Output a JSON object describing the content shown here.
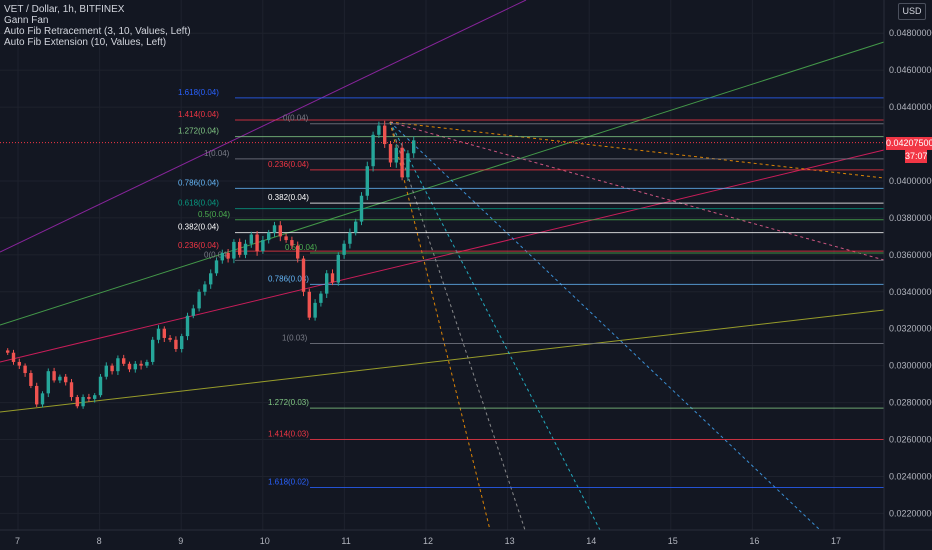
{
  "header": {
    "symbol": "VET / Dollar, 1h, BITFINEX",
    "indicators": [
      "Gann Fan",
      "Auto Fib Retracement (3, 10, Values, Left)",
      "Auto Fib Extension (10, Values, Left)"
    ],
    "currency_button": "USD"
  },
  "price_axis": {
    "ticks": [
      "0.04800000",
      "0.04600000",
      "0.04400000",
      "0.04000000",
      "0.03800000",
      "0.03600000",
      "0.03400000",
      "0.03200000",
      "0.03000000",
      "0.02800000",
      "0.02600000",
      "0.02400000",
      "0.02200000"
    ],
    "current_price": "0.04207500",
    "countdown": "37:07",
    "current_price_color": "#f23645",
    "countdown_color": "#f23645"
  },
  "time_axis": {
    "ticks": [
      "7",
      "8",
      "9",
      "10",
      "11",
      "12",
      "13",
      "14",
      "15",
      "16",
      "17"
    ]
  },
  "fib_levels": [
    {
      "label": "1.618(0.04)",
      "color": "#2962ff"
    },
    {
      "label": "1.414(0.04)",
      "color": "#f23645"
    },
    {
      "label": "0(0.04)",
      "color": "#787b86"
    },
    {
      "label": "1.272(0.04)",
      "color": "#81c784"
    },
    {
      "label": "1(0.04)",
      "color": "#787b86"
    },
    {
      "label": "0.236(0.04)",
      "color": "#f23645"
    },
    {
      "label": "0.786(0.04)",
      "color": "#64b5f6"
    },
    {
      "label": "0.382(0.04)",
      "color": "#ffffff"
    },
    {
      "label": "0.618(0.04)",
      "color": "#089981"
    },
    {
      "label": "0.5(0.04)",
      "color": "#4caf50"
    },
    {
      "label": "0.382(0.04)",
      "color": "#ffffff"
    },
    {
      "label": "0.236(0.04)",
      "color": "#f23645"
    },
    {
      "label": "0.5(0.04)",
      "color": "#4caf50"
    },
    {
      "label": "0(0.04)",
      "color": "#787b86"
    },
    {
      "label": "0.786(0.03)",
      "color": "#64b5f6"
    },
    {
      "label": "1(0.03)",
      "color": "#787b86"
    },
    {
      "label": "1.272(0.03)",
      "color": "#81c784"
    },
    {
      "label": "1.414(0.03)",
      "color": "#f23645"
    },
    {
      "label": "1.618(0.02)",
      "color": "#2962ff"
    }
  ],
  "chart_data": {
    "type": "candlestick",
    "symbol": "VET / Dollar",
    "interval": "1h",
    "exchange": "BITFINEX",
    "y_range": [
      0.0211,
      0.0498
    ],
    "x_ticks": [
      "7",
      "8",
      "9",
      "10",
      "11",
      "12",
      "13",
      "14",
      "15",
      "16",
      "17"
    ],
    "y_ticks": [
      0.048,
      0.046,
      0.044,
      0.04,
      0.038,
      0.036,
      0.034,
      0.032,
      0.03,
      0.028,
      0.026,
      0.024,
      0.022
    ],
    "current_price": 0.042075,
    "colors": {
      "up": "#26a69a",
      "down": "#ef5350"
    },
    "close_series": [
      0.0307,
      0.0302,
      0.03,
      0.0296,
      0.0289,
      0.0279,
      0.0285,
      0.0297,
      0.0292,
      0.0294,
      0.0291,
      0.0283,
      0.0278,
      0.0283,
      0.0282,
      0.0284,
      0.0294,
      0.03,
      0.0297,
      0.0304,
      0.0301,
      0.0298,
      0.0301,
      0.03,
      0.0302,
      0.0314,
      0.032,
      0.0315,
      0.0314,
      0.0309,
      0.0316,
      0.0327,
      0.0331,
      0.034,
      0.0344,
      0.035,
      0.0357,
      0.0361,
      0.0358,
      0.0367,
      0.036,
      0.0366,
      0.0371,
      0.0362,
      0.0368,
      0.0372,
      0.0376,
      0.037,
      0.0368,
      0.0365,
      0.0358,
      0.034,
      0.0326,
      0.0334,
      0.0339,
      0.035,
      0.0345,
      0.036,
      0.0366,
      0.0372,
      0.0378,
      0.0392,
      0.0408,
      0.0425,
      0.043,
      0.042,
      0.041,
      0.0418,
      0.0402,
      0.0415,
      0.0422
    ],
    "fib_retracement": {
      "0": 0.043,
      "0.236": 0.0406,
      "0.382": 0.0388,
      "0.5": 0.0376,
      "0.618": 0.0364,
      "0.786": 0.0344,
      "1": 0.0312
    },
    "fib_extension": {
      "1": 0.0412,
      "1.272": 0.0424,
      "1.414": 0.0433,
      "1.618": 0.0445,
      "0.786": 0.0392,
      "0.618": 0.0385,
      "0.5": 0.0379,
      "0.382": 0.0372,
      "0.236": 0.0362
    },
    "fib_extension_lower": {
      "1.272": 0.0277,
      "1.414": 0.026,
      "1.618": 0.0234
    },
    "grid": true
  }
}
